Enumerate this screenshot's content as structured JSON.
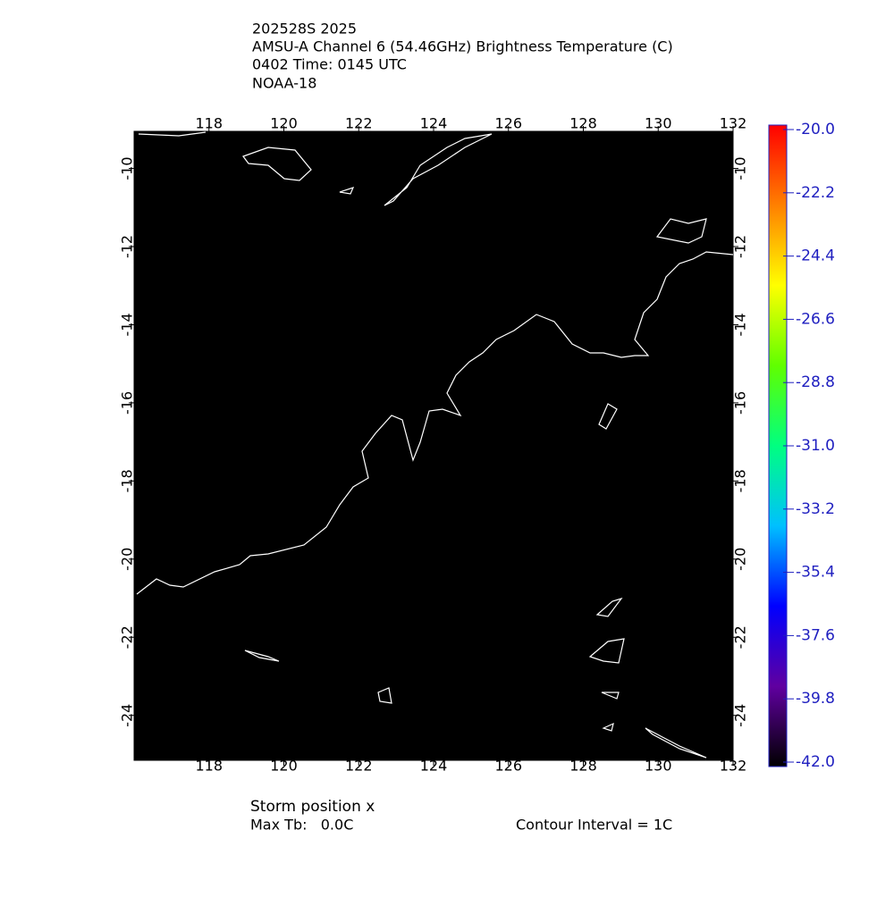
{
  "header": {
    "lines": [
      "202528S 2025",
      "AMSU-A Channel 6 (54.46GHz) Brightness Temperature (C)",
      "0402 Time: 0145 UTC",
      "NOAA-18"
    ]
  },
  "map": {
    "background": "#000000",
    "xlim": [
      116,
      132
    ],
    "xticks": [
      118,
      120,
      122,
      124,
      126,
      128,
      130,
      132
    ],
    "ylim": [
      -9.05,
      -25.15
    ],
    "yticks": [
      -10,
      -12,
      -14,
      -16,
      -18,
      -20,
      -22,
      -24
    ]
  },
  "colorbar": {
    "range": [
      -42,
      -20
    ],
    "colors": [
      "#000000",
      "#6000a0",
      "#0000ff",
      "#00c0ff",
      "#00ff80",
      "#60ff00",
      "#ffff00",
      "#ff8000",
      "#ff0000"
    ],
    "ticks": [
      {
        "value": -20,
        "label": "-20.0"
      },
      {
        "value": -22.2,
        "label": "-22.2"
      },
      {
        "value": -24.4,
        "label": "-24.4"
      },
      {
        "value": -26.6,
        "label": "-26.6"
      },
      {
        "value": -28.8,
        "label": "-28.8"
      },
      {
        "value": -31,
        "label": "-31.0"
      },
      {
        "value": -33.2,
        "label": "-33.2"
      },
      {
        "value": -35.4,
        "label": "-35.4"
      },
      {
        "value": -37.6,
        "label": "-37.6"
      },
      {
        "value": -39.8,
        "label": "-39.8"
      },
      {
        "value": -42,
        "label": "-42.0"
      }
    ]
  },
  "footer": {
    "storm": "Storm position x",
    "max_tb": "Max Tb:   0.0C",
    "contour": "Contour Interval = 1C"
  }
}
